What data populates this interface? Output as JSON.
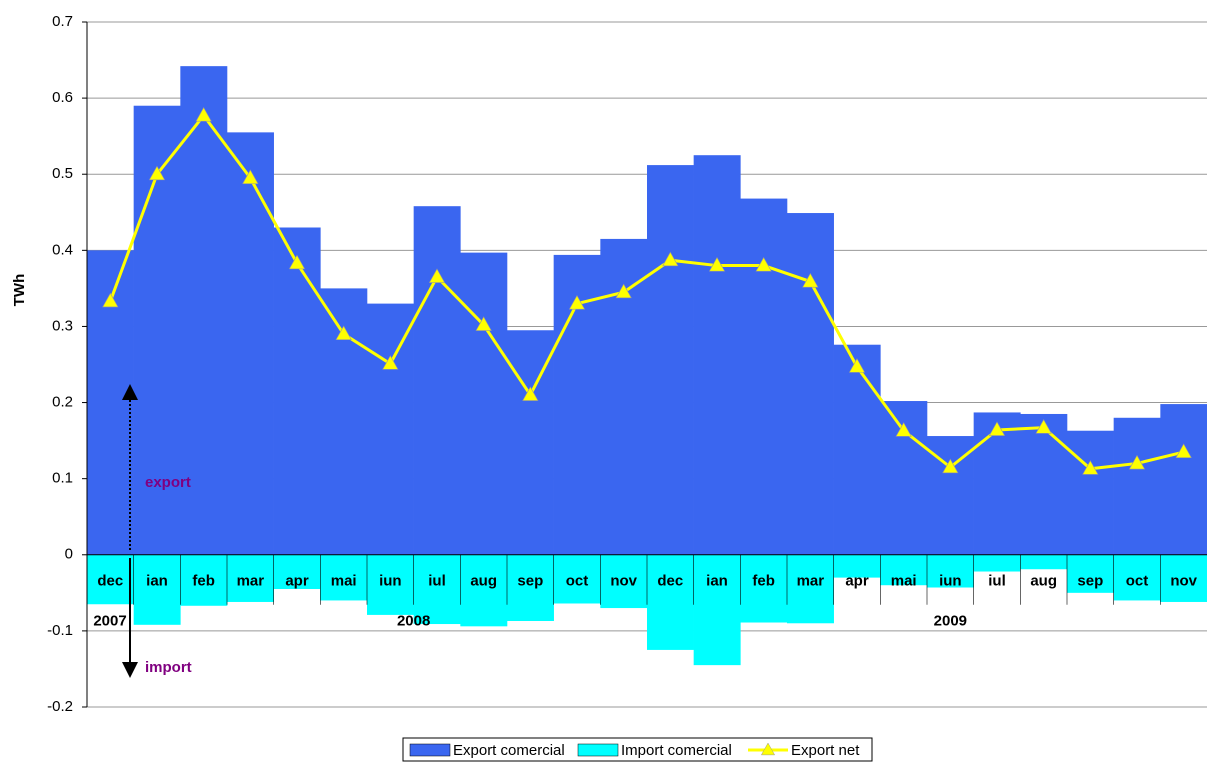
{
  "chart_data": {
    "type": "bar-line",
    "y_label": "TWh",
    "categories": [
      "dec",
      "ian",
      "feb",
      "mar",
      "apr",
      "mai",
      "iun",
      "iul",
      "aug",
      "sep",
      "oct",
      "nov",
      "dec",
      "ian",
      "feb",
      "mar",
      "apr",
      "mai",
      "iun",
      "iul",
      "aug",
      "sep",
      "oct",
      "nov"
    ],
    "year_groups": [
      {
        "label": "2007",
        "start": 0,
        "end": 0
      },
      {
        "label": "2008",
        "start": 1,
        "end": 12
      },
      {
        "label": "2009",
        "start": 13,
        "end": 23
      }
    ],
    "series": [
      {
        "name": "Export comercial",
        "color": "#3a66f0",
        "kind": "bar",
        "values": [
          0.4,
          0.59,
          0.642,
          0.555,
          0.43,
          0.35,
          0.33,
          0.458,
          0.397,
          0.295,
          0.394,
          0.415,
          0.512,
          0.525,
          0.468,
          0.449,
          0.276,
          0.202,
          0.156,
          0.187,
          0.185,
          0.163,
          0.18,
          0.198
        ]
      },
      {
        "name": "Import comercial",
        "color": "#00ffff",
        "kind": "bar",
        "values": [
          -0.065,
          -0.092,
          -0.067,
          -0.062,
          -0.045,
          -0.06,
          -0.079,
          -0.091,
          -0.094,
          -0.087,
          -0.064,
          -0.07,
          -0.125,
          -0.145,
          -0.089,
          -0.09,
          -0.03,
          -0.04,
          -0.043,
          -0.022,
          -0.019,
          -0.05,
          -0.06,
          -0.062
        ]
      },
      {
        "name": "Export net",
        "color": "#ffff00",
        "kind": "line",
        "values": [
          0.333,
          0.5,
          0.577,
          0.495,
          0.383,
          0.29,
          0.251,
          0.365,
          0.302,
          0.21,
          0.33,
          0.345,
          0.387,
          0.38,
          0.38,
          0.359,
          0.247,
          0.163,
          0.115,
          0.164,
          0.167,
          0.113,
          0.12,
          0.135
        ]
      }
    ],
    "annotations": [
      "export",
      "import"
    ],
    "ylim": [
      -0.2,
      0.7
    ],
    "yticks": [
      -0.2,
      -0.1,
      0,
      0.1,
      0.2,
      0.3,
      0.4,
      0.5,
      0.6,
      0.7
    ],
    "grid": true
  }
}
